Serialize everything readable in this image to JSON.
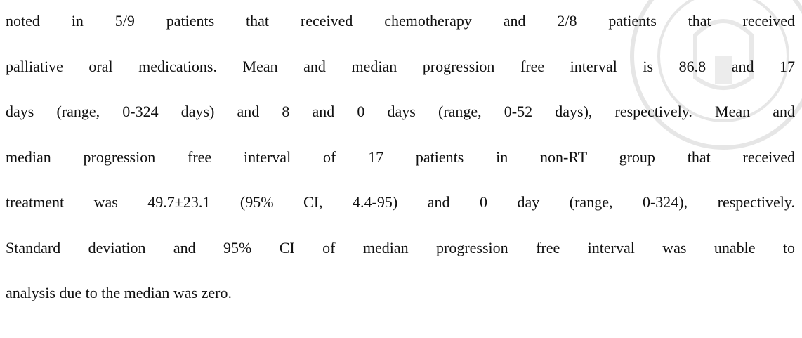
{
  "paragraph": {
    "lines": [
      "noted in 5/9 patients that received chemotherapy and 2/8 patients that received",
      "palliative oral medications. Mean and median progression free interval is 86.8 and 17",
      "days (range, 0-324 days) and 8 and 0 days (range, 0-52 days), respectively. Mean and",
      "median progression free interval of 17 patients in non-RT group that received",
      "treatment was 49.7±23.1 (95% CI, 4.4-95) and 0 day (range, 0-324), respectively.",
      "Standard deviation and 95% CI of median progression free interval was unable to",
      "analysis due to the median was zero."
    ]
  }
}
